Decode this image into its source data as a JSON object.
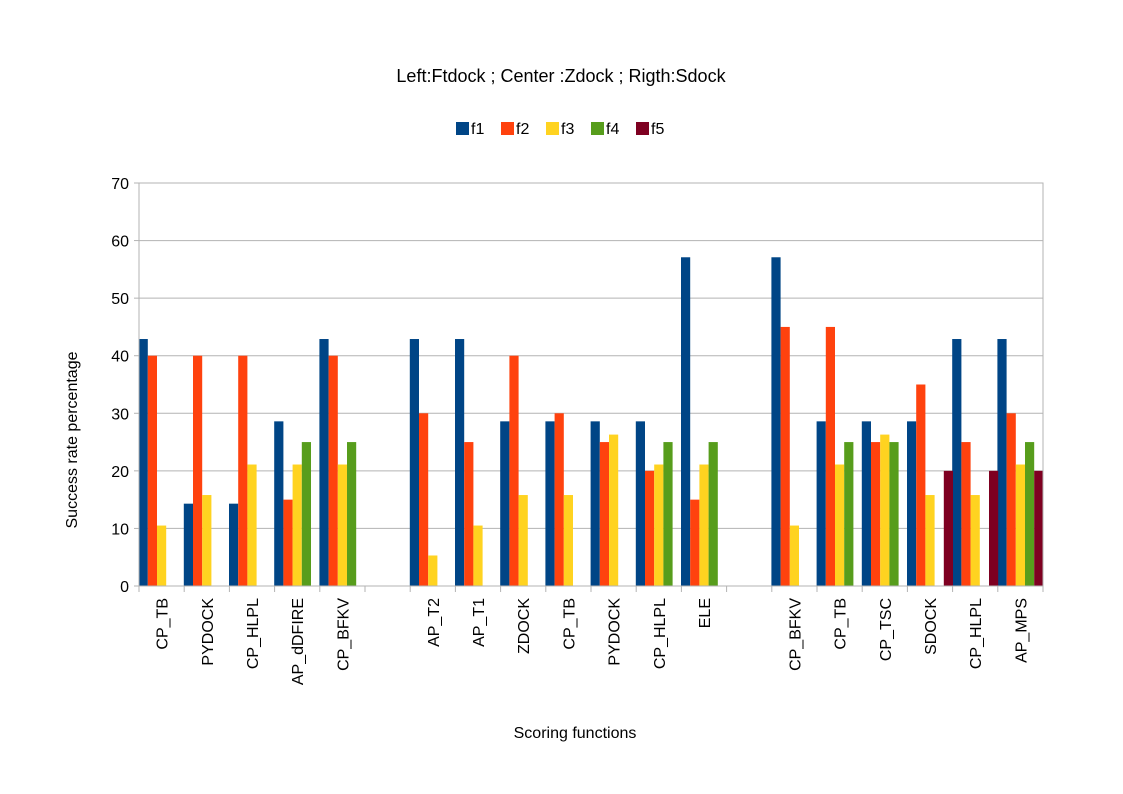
{
  "chart_data": {
    "type": "bar",
    "title": "Left:Ftdock ; Center :Zdock ;  Rigth:Sdock",
    "xlabel": "Scoring functions",
    "ylabel": "Success rate percentage",
    "ylim": [
      0,
      70
    ],
    "yticks": [
      0,
      10,
      20,
      30,
      40,
      50,
      60,
      70
    ],
    "grid": true,
    "legend_position": "top",
    "categories": [
      "CP_TB",
      "PYDOCK",
      "CP_HLPL",
      "AP_dDFIRE",
      "CP_BFKV",
      "",
      "AP_T2",
      "AP_T1",
      "ZDOCK",
      "CP_TB",
      "PYDOCK",
      "CP_HLPL",
      "ELE",
      "",
      "CP_BFKV",
      "CP_TB",
      "CP_TSC",
      "SDOCK",
      "CP_HLPL",
      "AP_MPS"
    ],
    "series": [
      {
        "name": "f1",
        "color": "#004586",
        "values": [
          42.9,
          14.3,
          14.3,
          28.6,
          42.9,
          null,
          42.9,
          42.9,
          28.6,
          28.6,
          28.6,
          28.6,
          57.1,
          null,
          57.1,
          28.6,
          28.6,
          28.6,
          42.9,
          42.9
        ]
      },
      {
        "name": "f2",
        "color": "#ff420e",
        "values": [
          40,
          40,
          40,
          15,
          40,
          null,
          30,
          25,
          40,
          30,
          25,
          20,
          15,
          null,
          45,
          45,
          25,
          35,
          25,
          30
        ]
      },
      {
        "name": "f3",
        "color": "#ffd320",
        "values": [
          10.5,
          15.8,
          21.1,
          21.1,
          21.1,
          null,
          5.3,
          10.5,
          15.8,
          15.8,
          26.3,
          21.1,
          21.1,
          null,
          10.5,
          21.1,
          26.3,
          15.8,
          15.8,
          21.1
        ]
      },
      {
        "name": "f4",
        "color": "#579d1c",
        "values": [
          null,
          null,
          null,
          25,
          25,
          null,
          null,
          null,
          null,
          null,
          null,
          25,
          25,
          null,
          null,
          25,
          25,
          null,
          null,
          25
        ]
      },
      {
        "name": "f5",
        "color": "#7e0021",
        "values": [
          null,
          null,
          null,
          null,
          null,
          null,
          null,
          null,
          null,
          null,
          null,
          null,
          null,
          null,
          null,
          null,
          null,
          20,
          20,
          20
        ]
      }
    ]
  }
}
